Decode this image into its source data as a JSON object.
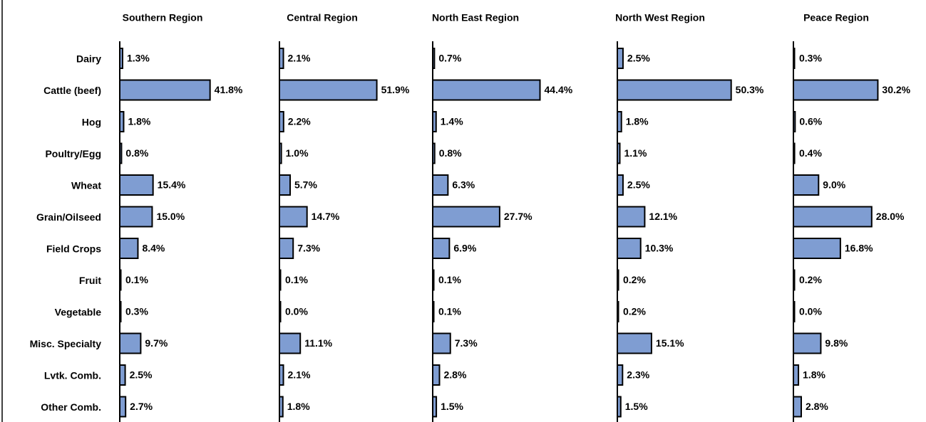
{
  "chart_data": [
    {
      "type": "bar",
      "title": "Southern Region",
      "color": "#7f9dd2",
      "xlim": [
        0,
        66
      ],
      "categories": [
        "Dairy",
        "Cattle (beef)",
        "Hog",
        "Poultry/Egg",
        "Wheat",
        "Grain/Oilseed",
        "Field Crops",
        "Fruit",
        "Vegetable",
        "Misc. Specialty",
        "Lvtk. Comb.",
        "Other Comb."
      ],
      "values": [
        1.3,
        41.8,
        1.8,
        0.8,
        15.4,
        15.0,
        8.4,
        0.1,
        0.3,
        9.7,
        2.5,
        2.7
      ],
      "value_labels": [
        "1.3%",
        "41.8%",
        "1.8%",
        "0.8%",
        "15.4%",
        "15.0%",
        "8.4%",
        "0.1%",
        "0.3%",
        "9.7%",
        "2.5%",
        "2.7%"
      ]
    },
    {
      "type": "bar",
      "title": "Central Region",
      "color": "#7f9dd2",
      "xlim": [
        0,
        76
      ],
      "values": [
        2.1,
        51.9,
        2.2,
        1.0,
        5.7,
        14.7,
        7.3,
        0.1,
        0.0,
        11.1,
        2.1,
        1.8
      ],
      "value_labels": [
        "2.1%",
        "51.9%",
        "2.2%",
        "1.0%",
        "5.7%",
        "14.7%",
        "7.3%",
        "0.1%",
        "0.0%",
        "11.1%",
        "2.1%",
        "1.8%"
      ]
    },
    {
      "type": "bar",
      "title": "North East Region",
      "color": "#7f9dd2",
      "xlim": [
        0,
        59
      ],
      "values": [
        0.7,
        44.4,
        1.4,
        0.8,
        6.3,
        27.7,
        6.9,
        0.1,
        0.1,
        7.3,
        2.8,
        1.5
      ],
      "value_labels": [
        "0.7%",
        "44.4%",
        "1.4%",
        "0.8%",
        "6.3%",
        "27.7%",
        "6.9%",
        "0.1%",
        "0.1%",
        "7.3%",
        "2.8%",
        "1.5%"
      ]
    },
    {
      "type": "bar",
      "title": "North West Region",
      "color": "#7f9dd2",
      "xlim": [
        0,
        63
      ],
      "values": [
        2.5,
        50.3,
        1.8,
        1.1,
        2.5,
        12.1,
        10.3,
        0.2,
        0.2,
        15.1,
        2.3,
        1.5
      ],
      "value_labels": [
        "2.5%",
        "50.3%",
        "1.8%",
        "1.1%",
        "2.5%",
        "12.1%",
        "10.3%",
        "0.2%",
        "0.2%",
        "15.1%",
        "2.3%",
        "1.5%"
      ]
    },
    {
      "type": "bar",
      "title": "Peace Region",
      "color": "#7f9dd2",
      "xlim": [
        0,
        51
      ],
      "values": [
        0.3,
        30.2,
        0.6,
        0.4,
        9.0,
        28.0,
        16.8,
        0.2,
        0.0,
        9.8,
        1.8,
        2.8
      ],
      "value_labels": [
        "0.3%",
        "30.2%",
        "0.6%",
        "0.4%",
        "9.0%",
        "28.0%",
        "16.8%",
        "0.2%",
        "0.0%",
        "9.8%",
        "1.8%",
        "2.8%"
      ]
    }
  ]
}
